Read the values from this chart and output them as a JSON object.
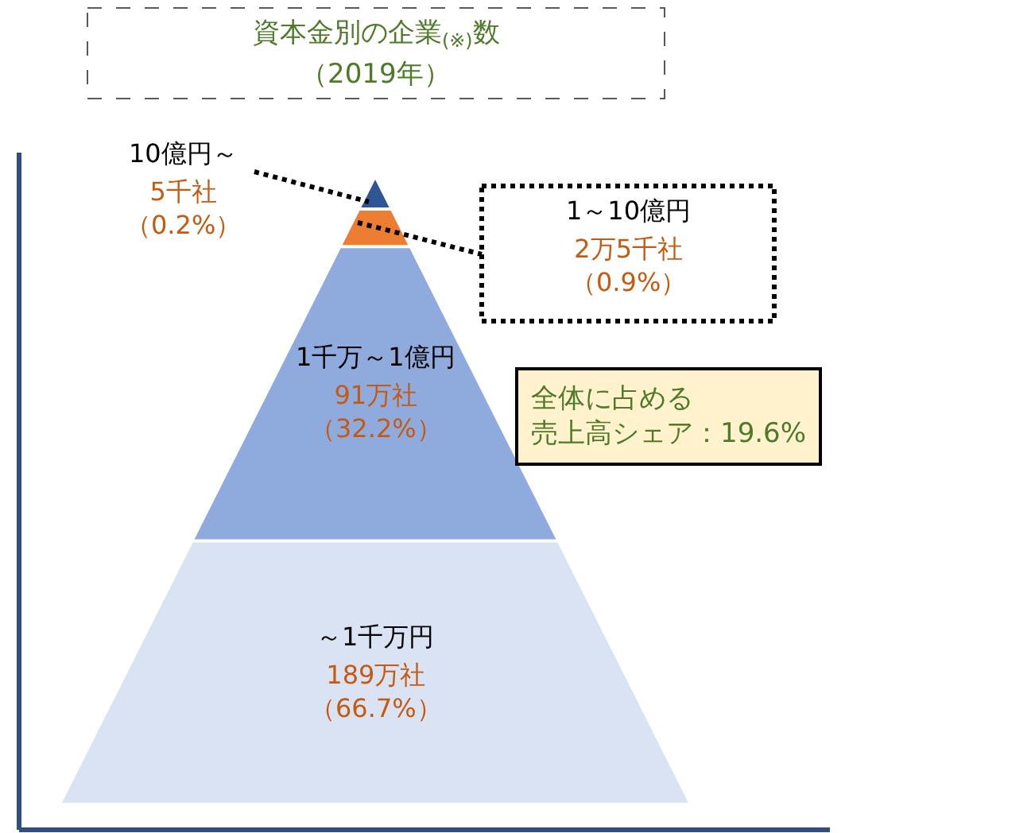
{
  "chart_data": {
    "type": "other",
    "title": "資本金別の企業$_{(※)}$数",
    "subtitle": "（2019年）",
    "categories": [
      "10億円～",
      "1～10億円",
      "1千万～1億円",
      "～1千万円"
    ],
    "values": [
      0.2,
      0.9,
      32.2,
      66.7
    ],
    "value_labels": [
      "5千社（0.2%）",
      "2万5千社（0.9%）",
      "91万社（32.2%）",
      "189万社（66.7%）"
    ],
    "colors": [
      "#2f5597",
      "#ed7d31",
      "#8faadc",
      "#dae3f3"
    ],
    "annotations": [
      "全体に占める",
      "売上高シェア：19.6%"
    ]
  }
}
